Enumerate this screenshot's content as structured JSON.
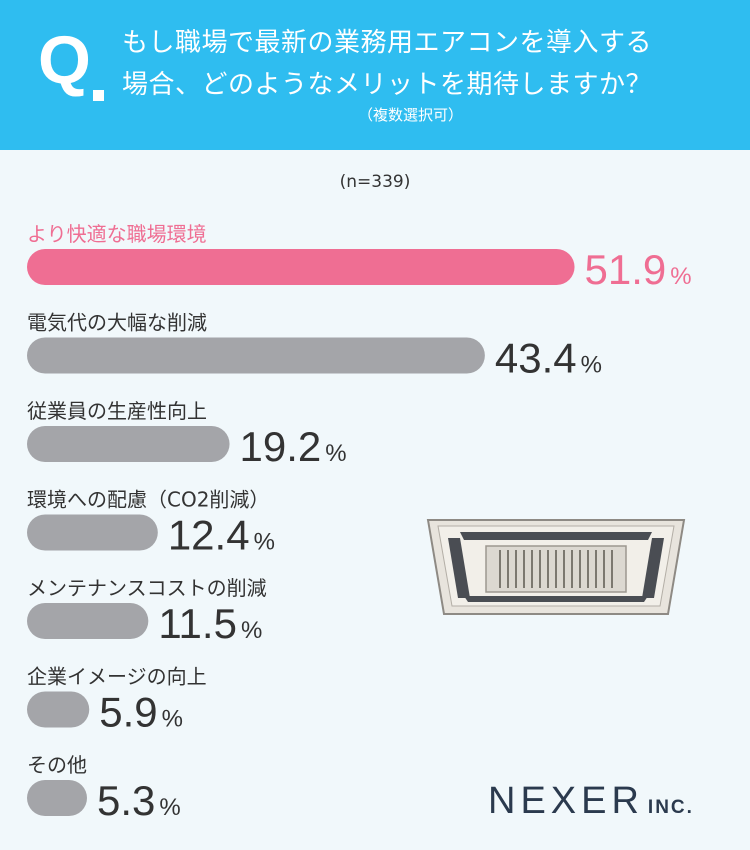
{
  "header": {
    "q_mark": "Q",
    "question_line1": "もし職場で最新の業務用エアコンを導入する",
    "question_line2": "場合、どのようなメリットを期待しますか？",
    "note": "（複数選択可）"
  },
  "sample_size": "(n=339)",
  "logo": {
    "name": "NEXER",
    "suffix": "INC."
  },
  "colors": {
    "header": "#2fbdf0",
    "highlight": "#ef6e93",
    "bar": "#a4a5a9",
    "background": "#f1f8fb"
  },
  "icon": "ceiling-air-conditioner-icon",
  "chart_data": {
    "type": "bar",
    "orientation": "horizontal",
    "unit": "%",
    "categories": [
      "より快適な職場環境",
      "電気代の大幅な削減",
      "従業員の生産性向上",
      "環境への配慮（CO2削減）",
      "メンテナンスコストの削減",
      "企業イメージの向上",
      "その他"
    ],
    "values": [
      51.9,
      43.4,
      19.2,
      12.4,
      11.5,
      5.9,
      5.3
    ],
    "value_labels": [
      "51.9",
      "43.4",
      "19.2",
      "12.4",
      "11.5",
      "5.9",
      "5.3"
    ],
    "highlight_index": 0
  }
}
